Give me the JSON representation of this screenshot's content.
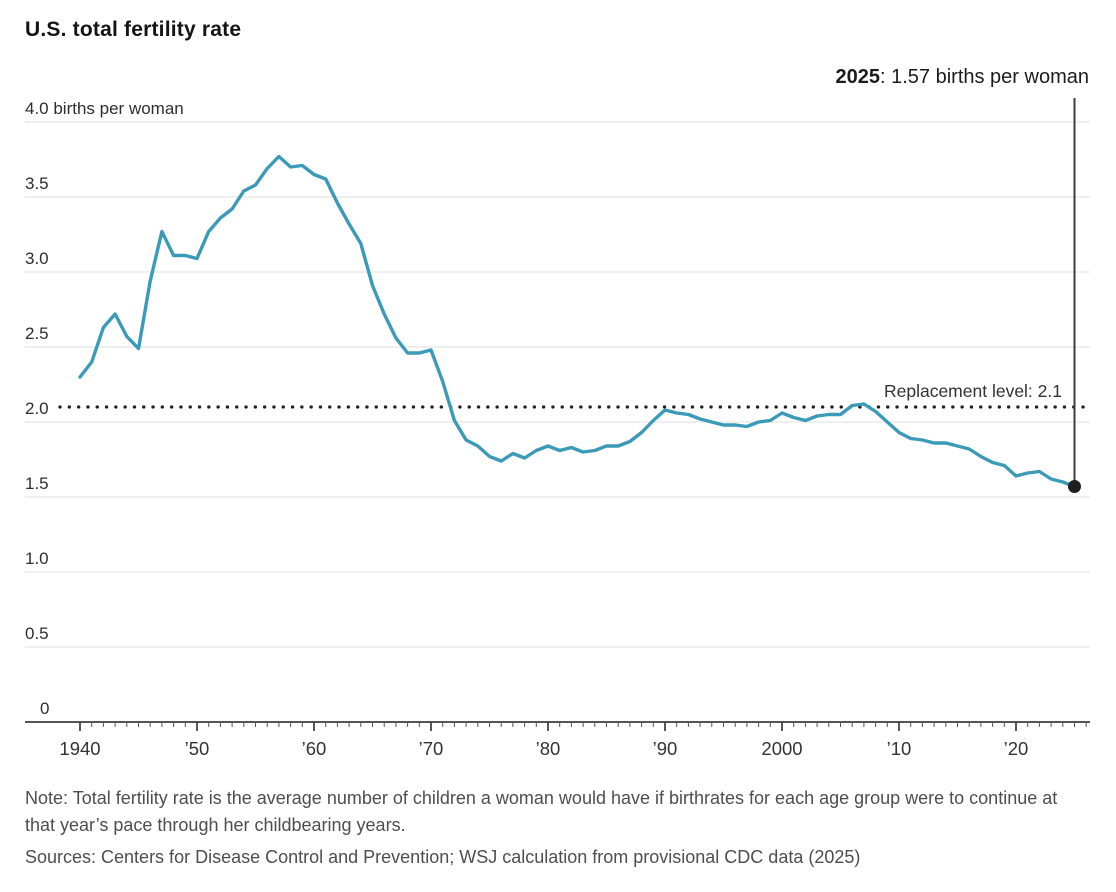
{
  "title": "U.S. total fertility rate",
  "annotation": {
    "year": "2025",
    "text": ": 1.57 births per woman"
  },
  "note": "Note: Total fertility rate is the average number of children a woman would have if birthrates for each age group were to continue at that year’s pace through her childbearing years.",
  "sources": "Sources: Centers for Disease Control and Prevention; WSJ calculation from provisional CDC data (2025)",
  "colors": {
    "line": "#3b9ab8",
    "grid": "#e5e5e5",
    "axis": "#3c3c3c",
    "tick": "#555555",
    "dotted": "#1f1f1f",
    "callout": "#3c3c3c",
    "dot": "#1f1f1f",
    "tick_text": "#2e2e2e",
    "label_text": "#333333"
  },
  "chart_data": {
    "type": "line",
    "title": "U.S. total fertility rate",
    "ylabel": "births per woman",
    "xlabel": "",
    "ylim": [
      0,
      4.0
    ],
    "xlim": [
      1940,
      2026
    ],
    "grid": "horizontal",
    "legend": "none",
    "y_ticks": [
      {
        "value": 0,
        "label": "0"
      },
      {
        "value": 0.5,
        "label": "0.5"
      },
      {
        "value": 1.0,
        "label": "1.0"
      },
      {
        "value": 1.5,
        "label": "1.5"
      },
      {
        "value": 2.0,
        "label": "2.0"
      },
      {
        "value": 2.5,
        "label": "2.5"
      },
      {
        "value": 3.0,
        "label": "3.0"
      },
      {
        "value": 3.5,
        "label": "3.5"
      },
      {
        "value": 4.0,
        "label": "4.0 births per woman"
      }
    ],
    "x_ticks": [
      {
        "year": 1940,
        "label": "1940"
      },
      {
        "year": 1950,
        "label": "’50"
      },
      {
        "year": 1960,
        "label": "’60"
      },
      {
        "year": 1970,
        "label": "’70"
      },
      {
        "year": 1980,
        "label": "’80"
      },
      {
        "year": 1990,
        "label": "’90"
      },
      {
        "year": 2000,
        "label": "2000"
      },
      {
        "year": 2010,
        "label": "’10"
      },
      {
        "year": 2020,
        "label": "’20"
      }
    ],
    "minor_tick_every_year": true,
    "replacement_level": 2.1,
    "replacement_label": "Replacement level: 2.1",
    "endpoint": {
      "year": 2025,
      "value": 1.57,
      "label": "2025: 1.57 births per woman"
    },
    "series": [
      {
        "name": "U.S. total fertility rate",
        "years": [
          1940,
          1941,
          1942,
          1943,
          1944,
          1945,
          1946,
          1947,
          1948,
          1949,
          1950,
          1951,
          1952,
          1953,
          1954,
          1955,
          1956,
          1957,
          1958,
          1959,
          1960,
          1961,
          1962,
          1963,
          1964,
          1965,
          1966,
          1967,
          1968,
          1969,
          1970,
          1971,
          1972,
          1973,
          1974,
          1975,
          1976,
          1977,
          1978,
          1979,
          1980,
          1981,
          1982,
          1983,
          1984,
          1985,
          1986,
          1987,
          1988,
          1989,
          1990,
          1991,
          1992,
          1993,
          1994,
          1995,
          1996,
          1997,
          1998,
          1999,
          2000,
          2001,
          2002,
          2003,
          2004,
          2005,
          2006,
          2007,
          2008,
          2009,
          2010,
          2011,
          2012,
          2013,
          2014,
          2015,
          2016,
          2017,
          2018,
          2019,
          2020,
          2021,
          2022,
          2023,
          2024,
          2025
        ],
        "values": [
          2.3,
          2.4,
          2.63,
          2.72,
          2.57,
          2.49,
          2.94,
          3.27,
          3.11,
          3.11,
          3.09,
          3.27,
          3.36,
          3.42,
          3.54,
          3.58,
          3.69,
          3.77,
          3.7,
          3.71,
          3.65,
          3.62,
          3.46,
          3.32,
          3.19,
          2.91,
          2.72,
          2.56,
          2.46,
          2.46,
          2.48,
          2.27,
          2.01,
          1.88,
          1.84,
          1.77,
          1.74,
          1.79,
          1.76,
          1.81,
          1.84,
          1.81,
          1.83,
          1.8,
          1.81,
          1.84,
          1.84,
          1.87,
          1.93,
          2.01,
          2.08,
          2.06,
          2.05,
          2.02,
          2.0,
          1.98,
          1.98,
          1.97,
          2.0,
          2.01,
          2.06,
          2.03,
          2.01,
          2.04,
          2.05,
          2.05,
          2.11,
          2.12,
          2.07,
          2.0,
          1.93,
          1.89,
          1.88,
          1.86,
          1.86,
          1.84,
          1.82,
          1.77,
          1.73,
          1.71,
          1.64,
          1.66,
          1.67,
          1.62,
          1.6,
          1.57
        ]
      }
    ]
  }
}
